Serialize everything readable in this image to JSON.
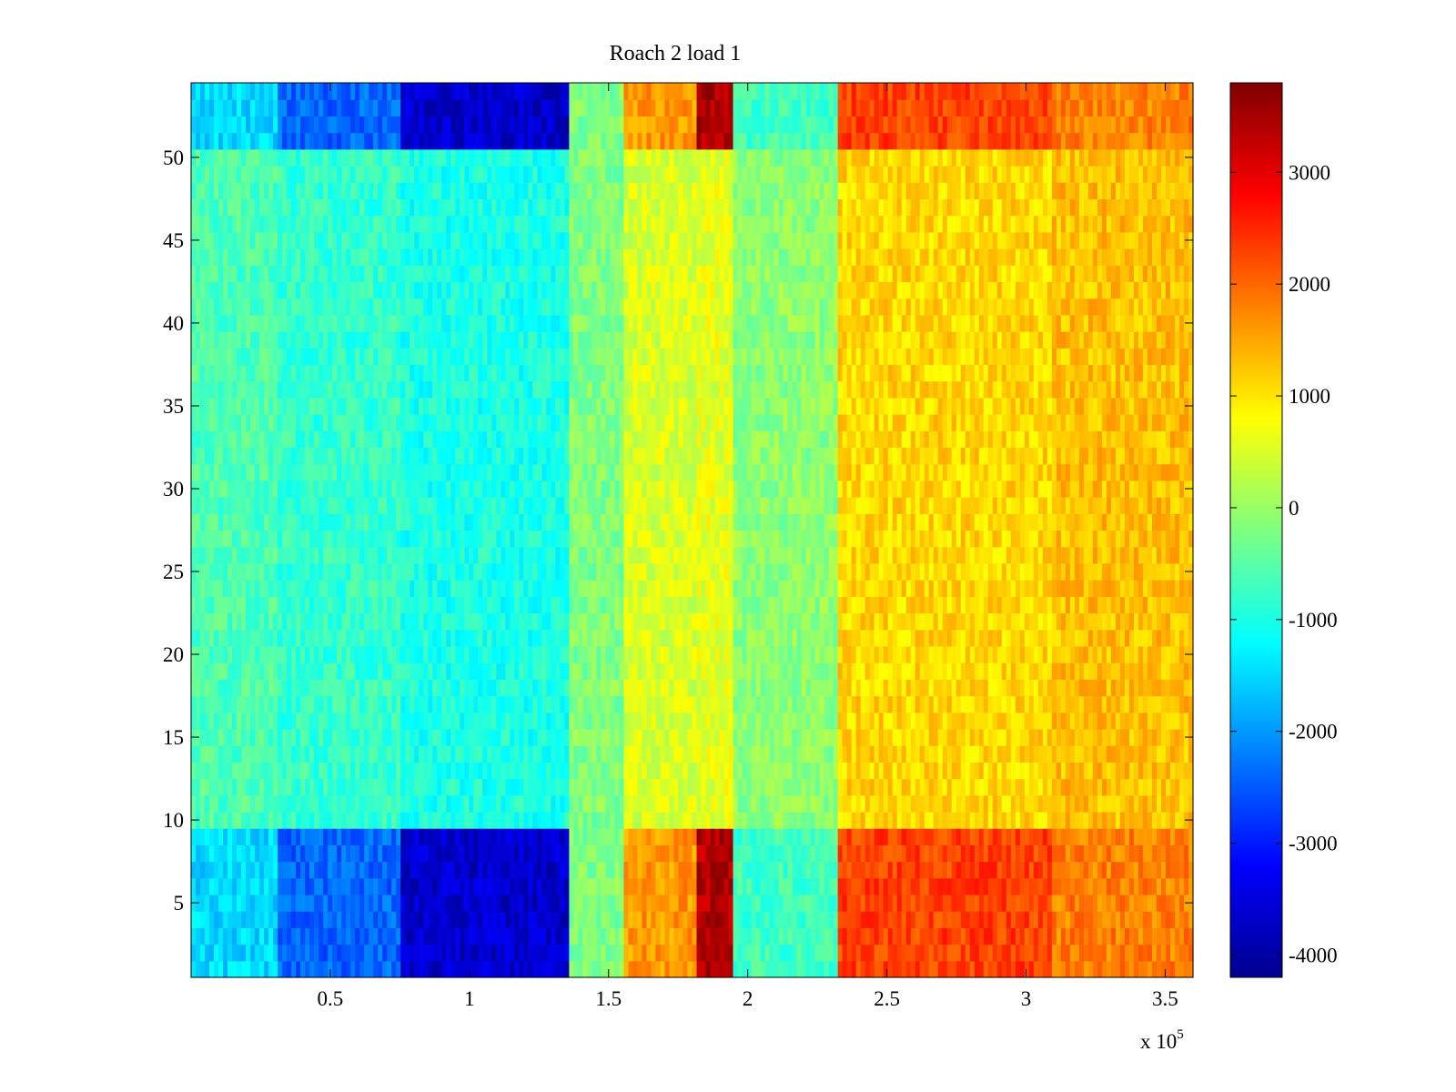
{
  "chart_data": {
    "type": "heatmap",
    "title": "Roach 2 load 1",
    "xlabel": "",
    "ylabel": "",
    "x_exponent_label": "x 10",
    "x_exponent": "5",
    "xlim": [
      0,
      360000
    ],
    "ylim": [
      0.5,
      54.5
    ],
    "clim": [
      -4200,
      3800
    ],
    "colormap": "jet",
    "x_ticks": [
      50000,
      100000,
      150000,
      200000,
      250000,
      300000,
      350000
    ],
    "x_tick_labels": [
      "0.5",
      "1",
      "1.5",
      "2",
      "2.5",
      "3",
      "3.5"
    ],
    "y_ticks": [
      5,
      10,
      15,
      20,
      25,
      30,
      35,
      40,
      45,
      50
    ],
    "y_tick_labels": [
      "5",
      "10",
      "15",
      "20",
      "25",
      "30",
      "35",
      "40",
      "45",
      "50"
    ],
    "colorbar_ticks": [
      3000,
      2000,
      1000,
      0,
      -1000,
      -2000,
      -3000,
      -4000
    ],
    "colorbar_tick_labels": [
      "3000",
      "2000",
      "1000",
      "0",
      "-1000",
      "-2000",
      "-3000",
      "-4000"
    ],
    "rows": 54,
    "column_segments": [
      {
        "x_start": 0,
        "x_end": 31000,
        "band_value": -1500,
        "mid_value": -600
      },
      {
        "x_start": 31000,
        "x_end": 76000,
        "band_value": -2400,
        "mid_value": -800
      },
      {
        "x_start": 76000,
        "x_end": 136000,
        "band_value": -3600,
        "mid_value": -1000
      },
      {
        "x_start": 136000,
        "x_end": 156000,
        "band_value": -200,
        "mid_value": -200
      },
      {
        "x_start": 156000,
        "x_end": 181000,
        "band_value": 1600,
        "mid_value": 500
      },
      {
        "x_start": 181000,
        "x_end": 194000,
        "band_value": 3400,
        "mid_value": 600
      },
      {
        "x_start": 194000,
        "x_end": 233000,
        "band_value": -700,
        "mid_value": -100
      },
      {
        "x_start": 233000,
        "x_end": 310000,
        "band_value": 2300,
        "mid_value": 1100
      },
      {
        "x_start": 310000,
        "x_end": 360000,
        "band_value": 1800,
        "mid_value": 1300
      }
    ],
    "band_rows": [
      [
        1,
        9
      ],
      [
        51,
        54
      ]
    ],
    "grid": false
  }
}
